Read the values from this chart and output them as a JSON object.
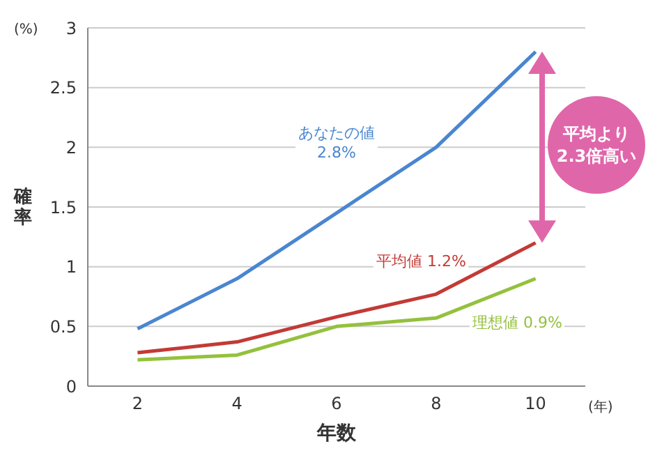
{
  "chart_data": {
    "type": "line",
    "xlabel": "年数",
    "ylabel": "確率",
    "categories": [
      "2",
      "4",
      "6",
      "8",
      "10"
    ],
    "series": [
      {
        "name": "あなたの値\n2.8%",
        "color": "#4a86d0",
        "values": [
          0.48,
          0.9,
          1.45,
          2.0,
          2.8
        ]
      },
      {
        "name": "平均値 1.2%",
        "color": "#c33a35",
        "values": [
          0.28,
          0.37,
          0.58,
          0.77,
          1.2
        ]
      },
      {
        "name": "理想値 0.9%",
        "color": "#94c13d",
        "values": [
          0.22,
          0.26,
          0.5,
          0.57,
          0.9
        ]
      }
    ],
    "ylim": [
      0,
      3
    ],
    "yticks": [
      0,
      0.5,
      1,
      1.5,
      2,
      2.5,
      3
    ],
    "grid": "y",
    "legend": false,
    "marker": "none",
    "line_style": "solid",
    "annotations": [
      "(%)",
      "(年)",
      "平均より\n2.3倍高い"
    ]
  }
}
